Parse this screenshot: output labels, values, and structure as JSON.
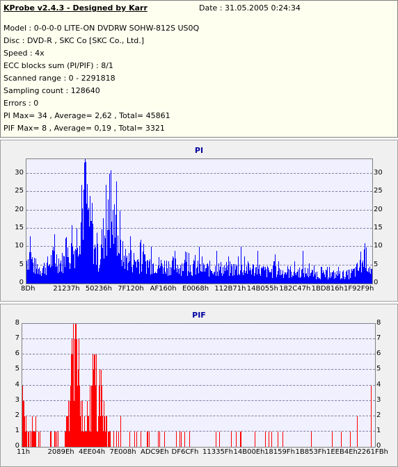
{
  "header": {
    "title": "KProbe v2.4.3 - Designed by Karr",
    "date": "Date : 31.05.2005 0:24:34",
    "lines": [
      "Model : 0-0-0-0 LITE-ON DVDRW SOHW-812S  US0Q",
      "Disc : DVD-R , SKC Co [SKC Co., Ltd.]",
      "Speed : 4x",
      "ECC blocks sum (PI/PIF) : 8/1",
      "Scanned range : 0 - 2291818",
      "Sampling count : 128640",
      "Errors : 0",
      "PI Max= 34 , Average= 2,62 , Total= 45861",
      "PIF Max= 8 , Average= 0,19 , Total= 3321"
    ]
  },
  "chart_data": [
    {
      "type": "bar",
      "title": "PI",
      "color": "#0000ff",
      "ylim": [
        0,
        34
      ],
      "yticks": [
        0,
        5,
        10,
        15,
        20,
        25,
        30
      ],
      "xtick_labels": [
        "8Dh",
        "21237h",
        "50236h",
        "7F120h",
        "AF160h",
        "E0068h",
        "112B71h",
        "14B055h",
        "182C47h",
        "1BD816h",
        "1F92F9h"
      ],
      "grid": true,
      "envelope": [
        [
          0,
          8
        ],
        [
          1,
          10
        ],
        [
          2,
          6
        ],
        [
          4,
          5
        ],
        [
          6,
          6
        ],
        [
          8,
          9
        ],
        [
          10,
          7
        ],
        [
          12,
          9
        ],
        [
          14,
          12
        ],
        [
          15,
          18
        ],
        [
          16,
          24
        ],
        [
          17,
          30
        ],
        [
          18,
          22
        ],
        [
          19,
          15
        ],
        [
          20,
          10
        ],
        [
          21,
          8
        ],
        [
          22,
          15
        ],
        [
          23,
          18
        ],
        [
          24,
          21
        ],
        [
          25,
          20
        ],
        [
          26,
          17
        ],
        [
          27,
          12
        ],
        [
          28,
          9
        ],
        [
          30,
          8
        ],
        [
          35,
          7
        ],
        [
          40,
          6
        ],
        [
          45,
          6
        ],
        [
          50,
          5
        ],
        [
          55,
          5
        ],
        [
          60,
          5
        ],
        [
          65,
          5
        ],
        [
          70,
          4
        ],
        [
          75,
          4
        ],
        [
          80,
          4
        ],
        [
          85,
          3
        ],
        [
          90,
          3
        ],
        [
          93,
          3
        ],
        [
          95,
          4
        ],
        [
          97,
          6
        ],
        [
          98,
          9
        ],
        [
          100,
          4
        ]
      ],
      "spikes": [
        [
          1,
          13
        ],
        [
          16,
          27
        ],
        [
          17,
          34
        ],
        [
          19,
          22
        ],
        [
          24,
          30
        ],
        [
          26,
          28
        ],
        [
          27,
          20
        ],
        [
          30,
          13
        ],
        [
          33,
          12
        ],
        [
          36,
          10
        ],
        [
          43,
          9
        ],
        [
          50,
          10
        ],
        [
          55,
          9
        ],
        [
          62,
          10
        ],
        [
          67,
          9
        ],
        [
          72,
          8
        ],
        [
          80,
          9
        ],
        [
          98,
          11
        ]
      ]
    },
    {
      "type": "bar",
      "title": "PIF",
      "color": "#ff0000",
      "ylim": [
        0,
        8
      ],
      "yticks": [
        0,
        1,
        2,
        3,
        4,
        5,
        6,
        7,
        8
      ],
      "xtick_labels": [
        "11h",
        "2089Eh",
        "4EE04h",
        "7E008h",
        "ADC9Eh",
        "DF6CFh",
        "11335Fh",
        "14B00Eh",
        "18159Fh",
        "1B853Fh",
        "1EEB4Eh",
        "2261FBh"
      ],
      "grid": true,
      "envelope": [
        [
          0,
          4
        ],
        [
          1,
          2
        ],
        [
          2,
          1
        ],
        [
          3,
          2
        ],
        [
          5,
          1
        ],
        [
          7,
          1
        ],
        [
          9,
          1
        ],
        [
          12,
          1
        ],
        [
          13,
          3
        ],
        [
          14,
          7
        ],
        [
          15,
          8
        ],
        [
          16,
          5
        ],
        [
          17,
          3
        ],
        [
          18,
          2
        ],
        [
          19,
          3
        ],
        [
          20,
          6
        ],
        [
          21,
          5
        ],
        [
          22,
          6
        ],
        [
          23,
          4
        ],
        [
          24,
          2
        ],
        [
          25,
          1
        ],
        [
          26,
          1
        ],
        [
          100,
          0
        ]
      ],
      "spikes": [
        [
          0,
          4
        ],
        [
          14,
          7
        ],
        [
          15,
          8
        ],
        [
          16,
          7
        ],
        [
          20,
          6
        ],
        [
          21,
          6
        ],
        [
          22,
          5
        ],
        [
          36,
          1
        ],
        [
          46,
          1
        ],
        [
          55,
          1
        ],
        [
          62,
          1
        ],
        [
          69,
          1
        ],
        [
          74,
          1
        ],
        [
          82,
          1
        ],
        [
          88,
          1
        ],
        [
          93,
          1
        ],
        [
          95,
          2
        ],
        [
          99,
          4
        ]
      ]
    }
  ]
}
